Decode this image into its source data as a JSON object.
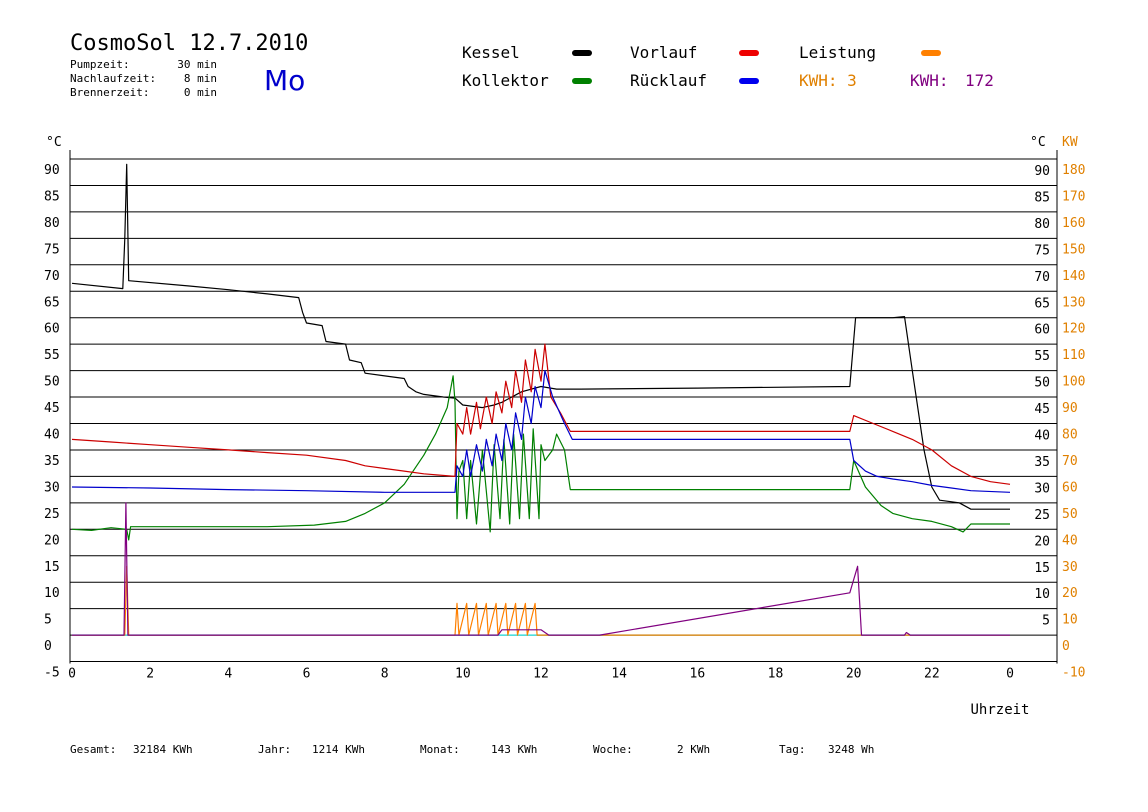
{
  "header": {
    "title": "CosmoSol 12.7.2010",
    "day": "Mo",
    "info": [
      {
        "label": "Pumpzeit:",
        "value": "30 min"
      },
      {
        "label": "Nachlaufzeit:",
        "value": "8 min"
      },
      {
        "label": "Brennerzeit:",
        "value": "0 min"
      }
    ]
  },
  "legend": {
    "kessel": "Kessel",
    "kollektor": "Kollektor",
    "vorlauf": "Vorlauf",
    "ruecklauf": "Rücklauf",
    "leistung": "Leistung",
    "kwh1": "KWH: 3",
    "kwh2_label": "KWH:",
    "kwh2_value": "172"
  },
  "footer": [
    {
      "label": "Gesamt:",
      "value": "32184 KWh"
    },
    {
      "label": "Jahr:",
      "value": "1214 KWh"
    },
    {
      "label": "Monat:",
      "value": "143 KWh"
    },
    {
      "label": "Woche:",
      "value": "2 KWh"
    },
    {
      "label": "Tag:",
      "value": "3248 Wh"
    }
  ],
  "colors": {
    "kessel": "#000000",
    "kollektor": "#008000",
    "vorlauf": "#cc0000",
    "ruecklauf": "#0000cc",
    "leistung": "#ff8000",
    "kwh2": "#800080",
    "zero": "#40e0e0",
    "day": "#0000cc",
    "kw_axis": "#e08000"
  },
  "chart_data": {
    "type": "line",
    "xlabel": "Uhrzeit",
    "left_unit": "°C",
    "right_unit_c": "°C",
    "right_unit_kw": "KW",
    "xlim": [
      0,
      24
    ],
    "ylim": [
      -5,
      90
    ],
    "x_ticks": [
      "0",
      "2",
      "4",
      "6",
      "8",
      "10",
      "12",
      "14",
      "16",
      "18",
      "20",
      "22",
      "0"
    ],
    "y_ticks_left": [
      "90",
      "85",
      "80",
      "75",
      "70",
      "65",
      "60",
      "55",
      "50",
      "45",
      "40",
      "35",
      "30",
      "25",
      "20",
      "15",
      "10",
      "5",
      "0",
      "-5"
    ],
    "y_ticks_right": [
      "90",
      "85",
      "80",
      "75",
      "70",
      "65",
      "60",
      "55",
      "50",
      "45",
      "40",
      "35",
      "30",
      "25",
      "20",
      "15",
      "10",
      "5"
    ],
    "y_ticks_kw": [
      "180",
      "170",
      "160",
      "150",
      "140",
      "130",
      "120",
      "110",
      "100",
      "90",
      "80",
      "70",
      "60",
      "50",
      "40",
      "30",
      "20",
      "10",
      "0",
      "-10"
    ],
    "grid": "horizontal",
    "series": [
      {
        "name": "Kessel",
        "color": "#000000",
        "points": [
          [
            0,
            66.5
          ],
          [
            1.3,
            65.5
          ],
          [
            1.35,
            75
          ],
          [
            1.4,
            89
          ],
          [
            1.45,
            67
          ],
          [
            3,
            66
          ],
          [
            4,
            65.3
          ],
          [
            5,
            64.5
          ],
          [
            5.8,
            63.8
          ],
          [
            5.9,
            61
          ],
          [
            6,
            59
          ],
          [
            6.4,
            58.5
          ],
          [
            6.5,
            55.5
          ],
          [
            7,
            55
          ],
          [
            7.1,
            52
          ],
          [
            7.4,
            51.5
          ],
          [
            7.5,
            49.5
          ],
          [
            8.5,
            48.5
          ],
          [
            8.6,
            47
          ],
          [
            8.8,
            46
          ],
          [
            9,
            45.5
          ],
          [
            9.5,
            45
          ],
          [
            9.8,
            44.8
          ],
          [
            10,
            43.5
          ],
          [
            10.5,
            43
          ],
          [
            10.8,
            43.5
          ],
          [
            11,
            44
          ],
          [
            11.5,
            46
          ],
          [
            12,
            47
          ],
          [
            12.4,
            46.5
          ],
          [
            13,
            46.5
          ],
          [
            16,
            46.7
          ],
          [
            19.9,
            47
          ],
          [
            20.05,
            60
          ],
          [
            21,
            60
          ],
          [
            21.3,
            60.2
          ],
          [
            21.5,
            50
          ],
          [
            21.8,
            35
          ],
          [
            22,
            28
          ],
          [
            22.2,
            25.5
          ],
          [
            22.7,
            25
          ],
          [
            23,
            23.8
          ],
          [
            23.5,
            23.8
          ],
          [
            24,
            23.8
          ]
        ]
      },
      {
        "name": "Kollektor",
        "color": "#008000",
        "points": [
          [
            0,
            20
          ],
          [
            0.5,
            19.8
          ],
          [
            1,
            20.3
          ],
          [
            1.4,
            20
          ],
          [
            1.45,
            18
          ],
          [
            1.5,
            20.5
          ],
          [
            3,
            20.5
          ],
          [
            5,
            20.5
          ],
          [
            6.2,
            20.8
          ],
          [
            7,
            21.5
          ],
          [
            7.5,
            23
          ],
          [
            8,
            25
          ],
          [
            8.5,
            28.5
          ],
          [
            9,
            34
          ],
          [
            9.3,
            38
          ],
          [
            9.6,
            43
          ],
          [
            9.75,
            49
          ],
          [
            9.8,
            44
          ],
          [
            9.85,
            22
          ],
          [
            9.9,
            31
          ],
          [
            10,
            33
          ],
          [
            10.1,
            22
          ],
          [
            10.2,
            33
          ],
          [
            10.35,
            21
          ],
          [
            10.5,
            35
          ],
          [
            10.7,
            19.5
          ],
          [
            10.8,
            36
          ],
          [
            10.95,
            22
          ],
          [
            11.05,
            37
          ],
          [
            11.2,
            21
          ],
          [
            11.3,
            38
          ],
          [
            11.45,
            22
          ],
          [
            11.55,
            38
          ],
          [
            11.7,
            22
          ],
          [
            11.8,
            39
          ],
          [
            11.95,
            22
          ],
          [
            12,
            36
          ],
          [
            12.1,
            33
          ],
          [
            12.3,
            35
          ],
          [
            12.4,
            38
          ],
          [
            12.6,
            35
          ],
          [
            12.75,
            27.5
          ],
          [
            13,
            27.5
          ],
          [
            19.9,
            27.5
          ],
          [
            20,
            33
          ],
          [
            20.3,
            28
          ],
          [
            20.7,
            24.5
          ],
          [
            21,
            23
          ],
          [
            21.5,
            22
          ],
          [
            22,
            21.5
          ],
          [
            22.5,
            20.5
          ],
          [
            22.8,
            19.5
          ],
          [
            23,
            21
          ],
          [
            23.5,
            21
          ],
          [
            24,
            21
          ]
        ]
      },
      {
        "name": "Vorlauf",
        "color": "#cc0000",
        "points": [
          [
            0,
            37
          ],
          [
            1,
            36.5
          ],
          [
            2,
            36
          ],
          [
            3,
            35.5
          ],
          [
            4,
            35
          ],
          [
            5,
            34.5
          ],
          [
            6,
            34
          ],
          [
            7,
            33
          ],
          [
            7.5,
            32
          ],
          [
            8,
            31.5
          ],
          [
            8.5,
            31
          ],
          [
            9,
            30.5
          ],
          [
            9.8,
            30
          ],
          [
            9.85,
            40
          ],
          [
            10,
            38
          ],
          [
            10.1,
            43
          ],
          [
            10.2,
            38
          ],
          [
            10.35,
            44
          ],
          [
            10.45,
            39
          ],
          [
            10.6,
            45
          ],
          [
            10.75,
            40
          ],
          [
            10.85,
            46
          ],
          [
            11,
            42
          ],
          [
            11.1,
            48
          ],
          [
            11.25,
            43
          ],
          [
            11.35,
            50
          ],
          [
            11.5,
            44
          ],
          [
            11.6,
            52
          ],
          [
            11.75,
            46
          ],
          [
            11.85,
            54
          ],
          [
            12,
            48
          ],
          [
            12.1,
            55
          ],
          [
            12.25,
            45
          ],
          [
            12.5,
            42
          ],
          [
            12.75,
            38.5
          ],
          [
            13,
            38.5
          ],
          [
            19.9,
            38.5
          ],
          [
            20,
            41.5
          ],
          [
            20.5,
            40
          ],
          [
            21,
            38.5
          ],
          [
            21.5,
            37
          ],
          [
            22,
            35
          ],
          [
            22.5,
            32
          ],
          [
            23,
            30
          ],
          [
            23.5,
            29
          ],
          [
            24,
            28.5
          ]
        ]
      },
      {
        "name": "Rücklauf",
        "color": "#0000cc",
        "points": [
          [
            0,
            28
          ],
          [
            2,
            27.8
          ],
          [
            4,
            27.5
          ],
          [
            6,
            27.3
          ],
          [
            8,
            27
          ],
          [
            9.8,
            27
          ],
          [
            9.85,
            32
          ],
          [
            10,
            30
          ],
          [
            10.1,
            35
          ],
          [
            10.2,
            30
          ],
          [
            10.35,
            36
          ],
          [
            10.5,
            31
          ],
          [
            10.6,
            37
          ],
          [
            10.75,
            32
          ],
          [
            10.85,
            38
          ],
          [
            11,
            33
          ],
          [
            11.1,
            40
          ],
          [
            11.25,
            35
          ],
          [
            11.35,
            42
          ],
          [
            11.5,
            37
          ],
          [
            11.6,
            45
          ],
          [
            11.75,
            40
          ],
          [
            11.85,
            47
          ],
          [
            12,
            43
          ],
          [
            12.1,
            50
          ],
          [
            12.3,
            45
          ],
          [
            12.6,
            40
          ],
          [
            12.8,
            37
          ],
          [
            13,
            37
          ],
          [
            19.9,
            37
          ],
          [
            20,
            33
          ],
          [
            20.3,
            31
          ],
          [
            20.6,
            30
          ],
          [
            21,
            29.5
          ],
          [
            21.5,
            29
          ],
          [
            22,
            28.3
          ],
          [
            22.5,
            27.8
          ],
          [
            23,
            27.3
          ],
          [
            24,
            27
          ]
        ]
      },
      {
        "name": "Leistung",
        "color": "#ff8000",
        "points": [
          [
            0,
            0
          ],
          [
            1.35,
            0
          ],
          [
            1.4,
            13
          ],
          [
            1.45,
            0
          ],
          [
            9.8,
            0
          ],
          [
            9.85,
            6
          ],
          [
            9.9,
            0
          ],
          [
            10.1,
            6
          ],
          [
            10.15,
            0
          ],
          [
            10.35,
            6
          ],
          [
            10.4,
            0
          ],
          [
            10.6,
            6
          ],
          [
            10.65,
            0
          ],
          [
            10.85,
            6
          ],
          [
            10.9,
            0
          ],
          [
            11.1,
            6
          ],
          [
            11.15,
            0
          ],
          [
            11.35,
            6
          ],
          [
            11.4,
            0
          ],
          [
            11.6,
            6
          ],
          [
            11.65,
            0
          ],
          [
            11.85,
            6
          ],
          [
            11.9,
            0
          ],
          [
            24,
            0
          ]
        ]
      },
      {
        "name": "KWH",
        "color": "#800080",
        "points": [
          [
            0,
            0
          ],
          [
            1.33,
            0
          ],
          [
            1.38,
            25
          ],
          [
            1.43,
            0
          ],
          [
            10.9,
            0
          ],
          [
            11,
            1
          ],
          [
            12,
            1
          ],
          [
            12.2,
            0
          ],
          [
            13.5,
            0
          ],
          [
            19.9,
            8
          ],
          [
            20.1,
            13
          ],
          [
            20.2,
            0
          ],
          [
            21.3,
            0
          ],
          [
            21.35,
            0.5
          ],
          [
            21.45,
            0
          ],
          [
            24,
            0
          ]
        ]
      }
    ]
  }
}
